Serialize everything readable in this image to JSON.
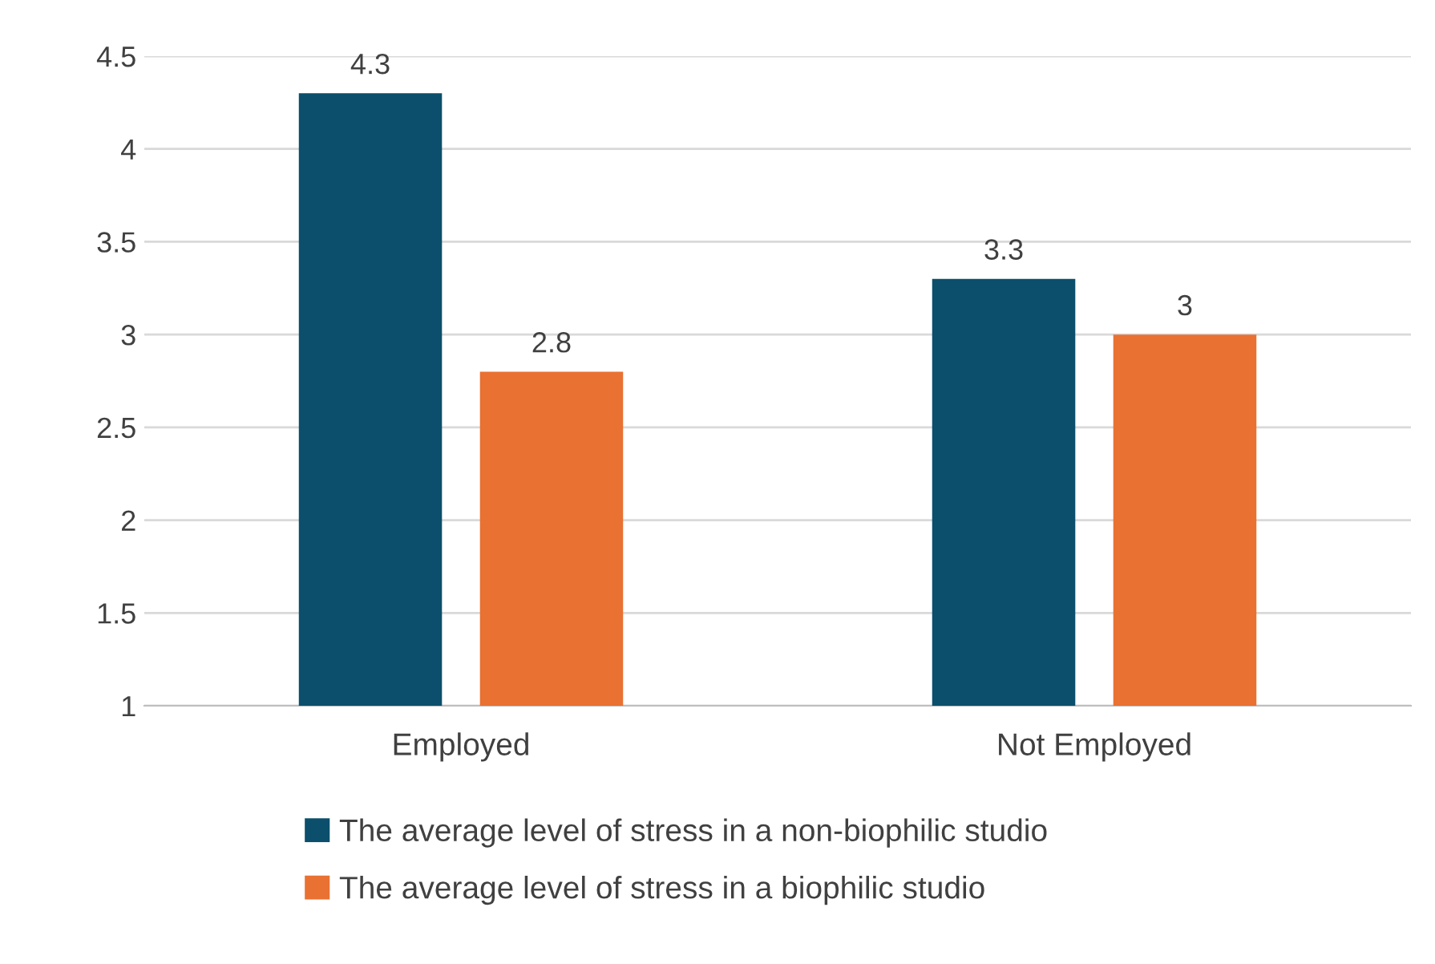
{
  "chart_data": {
    "type": "bar",
    "categories": [
      "Employed",
      "Not Employed"
    ],
    "series": [
      {
        "name": "The average level of stress in a non-biophilic studio",
        "color": "#0b4f6c",
        "values": [
          4.3,
          3.3
        ]
      },
      {
        "name": "The average level of stress in a biophilic studio",
        "color": "#e97132",
        "values": [
          2.8,
          3
        ]
      }
    ],
    "ylim": [
      1,
      4.5
    ],
    "yticks": [
      1,
      1.5,
      2,
      2.5,
      3,
      3.5,
      4,
      4.5
    ],
    "grid": "y",
    "legend": "bottom",
    "data_labels": true
  }
}
